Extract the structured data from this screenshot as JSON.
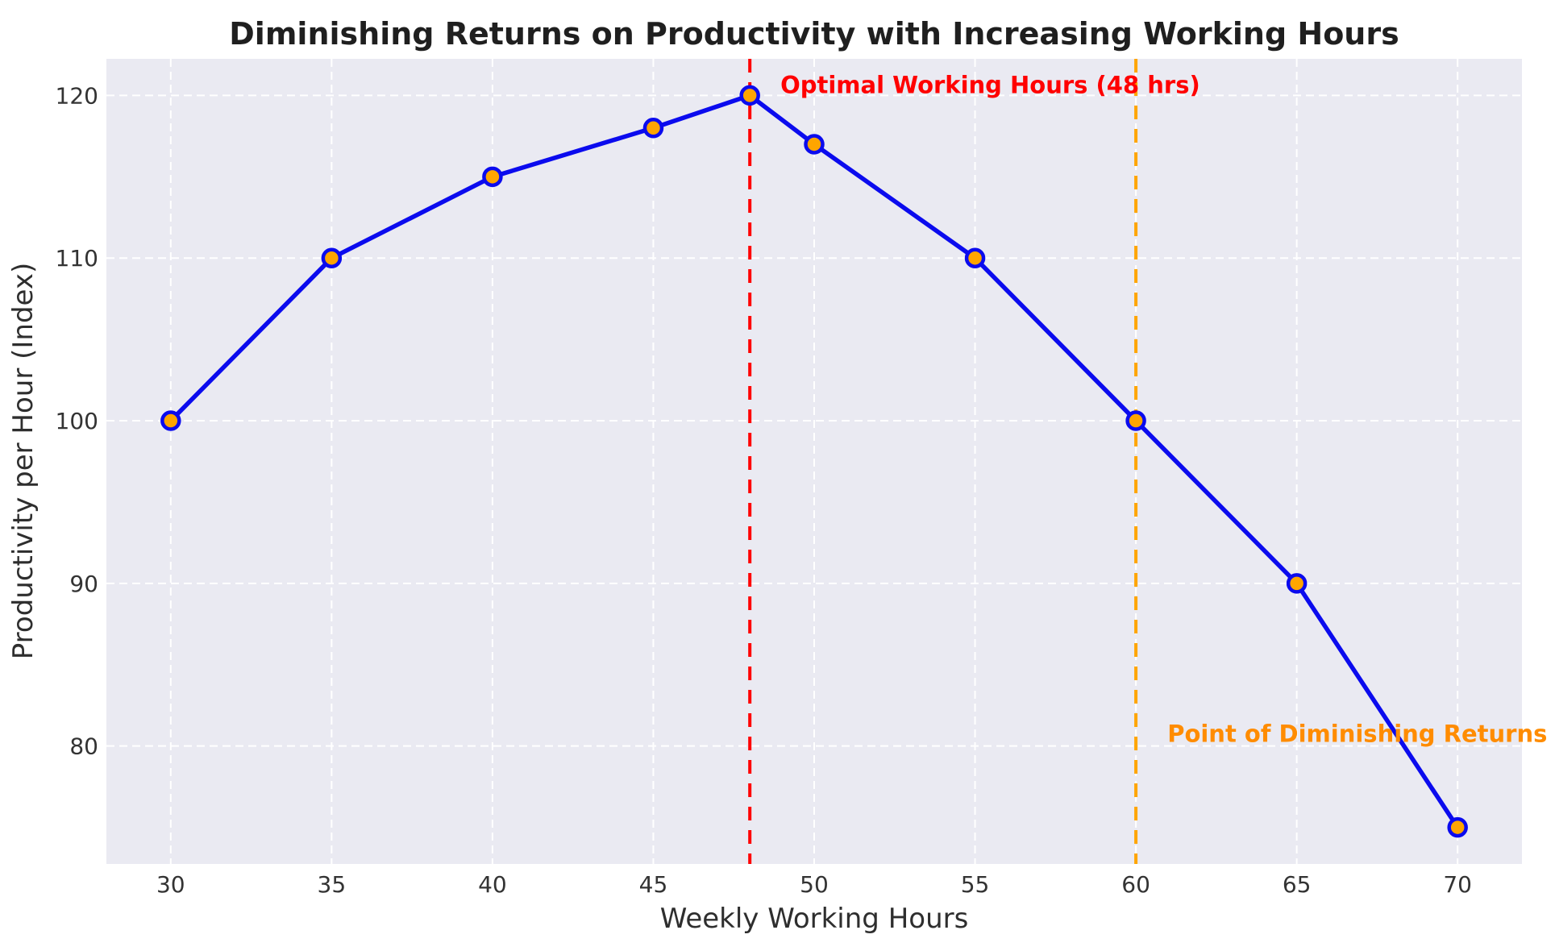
{
  "figure": {
    "background": "#FFFFFF",
    "plot_background": "#EAEAF2",
    "grid_color": "#FFFFFF"
  },
  "chart_data": {
    "type": "line",
    "title": "Diminishing Returns on Productivity with Increasing Working Hours",
    "xlabel": "Weekly Working Hours",
    "ylabel": "Productivity per Hour (Index)",
    "x": [
      30,
      35,
      40,
      45,
      48,
      50,
      55,
      60,
      65,
      70
    ],
    "series": [
      {
        "name": "Productivity per Hour",
        "values": [
          100,
          110,
          115,
          118,
          120,
          117,
          110,
          100,
          90,
          75
        ],
        "line_color": "#0b0bee",
        "marker_fill": "#FFA500",
        "marker_edge": "#0b0bee"
      }
    ],
    "xlim": [
      28,
      72
    ],
    "ylim": [
      72.75,
      122.25
    ],
    "x_ticks": [
      30,
      35,
      40,
      45,
      50,
      55,
      60,
      65,
      70
    ],
    "y_ticks": [
      80,
      90,
      100,
      110,
      120
    ],
    "grid": true,
    "legend_position": "none",
    "vlines": [
      {
        "x": 48,
        "color": "#FF0000",
        "style": "dashed",
        "label": "optimal-hours-line"
      },
      {
        "x": 60,
        "color": "#FFA500",
        "style": "dashed",
        "label": "diminishing-returns-line"
      }
    ],
    "annotations": [
      {
        "text": "Optimal Working Hours (48 hrs)",
        "x": 48.95,
        "y": 120.15,
        "color": "#FF0000"
      },
      {
        "text": "Point of Diminishing Returns",
        "x": 60.98,
        "y": 80.25,
        "color": "#FF8C00"
      }
    ]
  }
}
